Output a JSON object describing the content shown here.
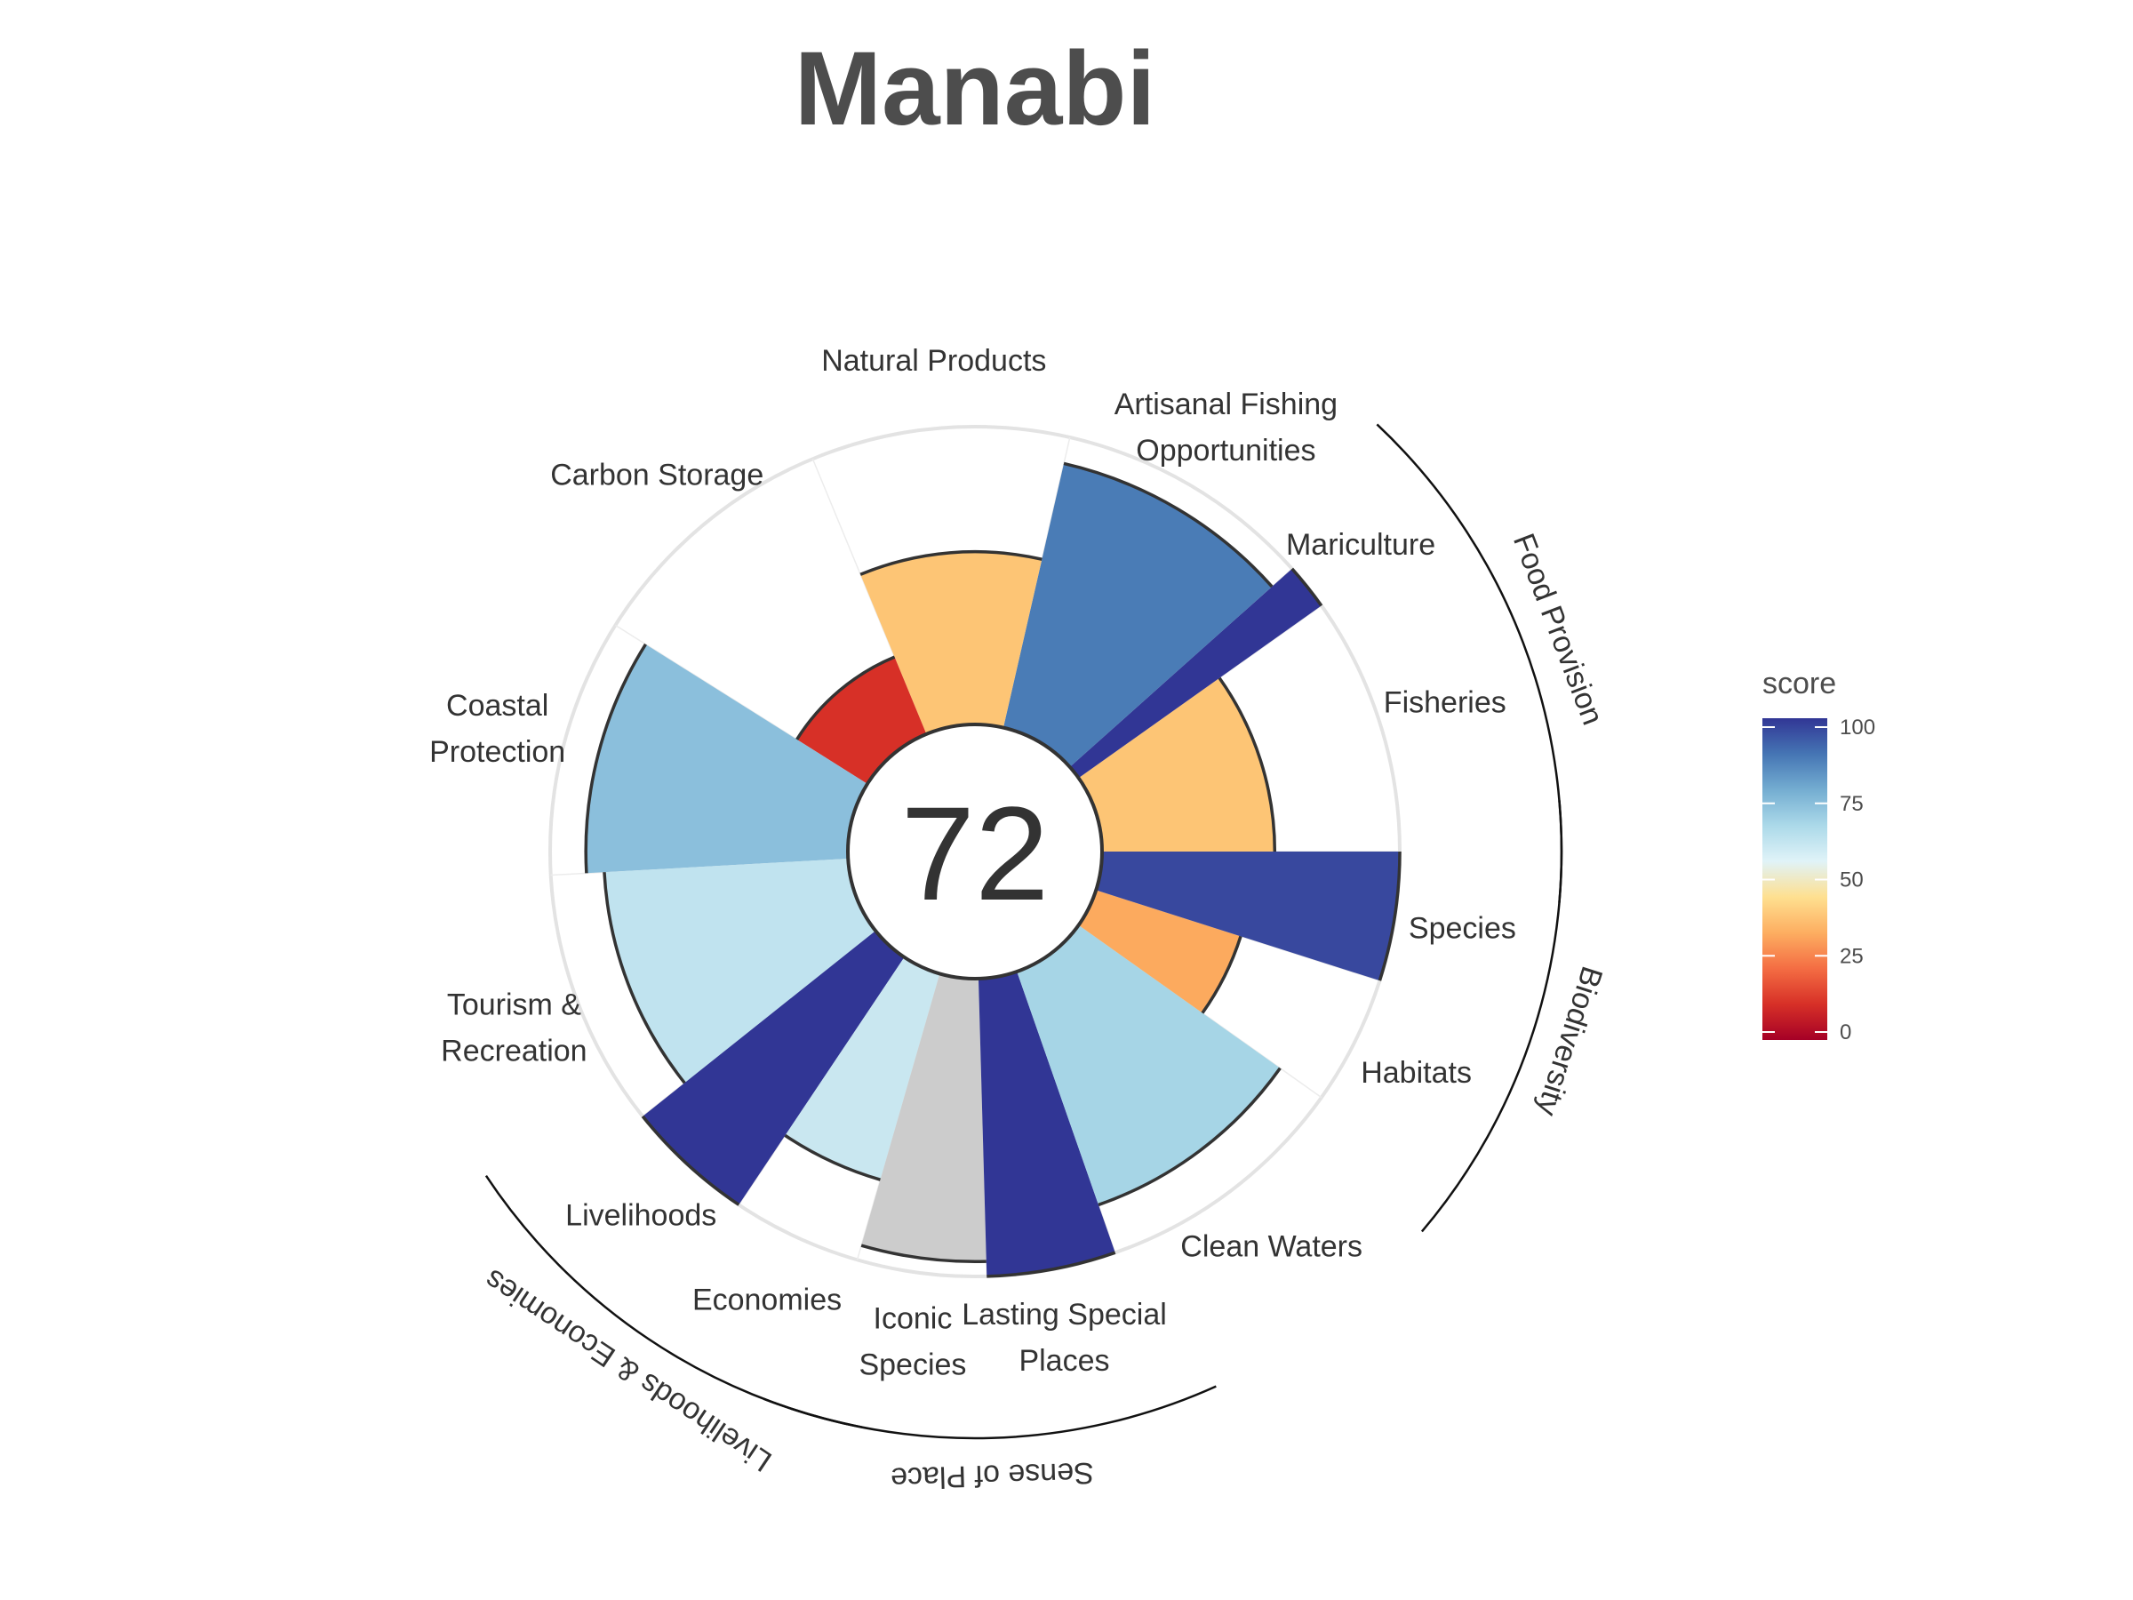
{
  "chart_data": {
    "type": "polar-bar",
    "title": "Manabi",
    "overall_score": "72",
    "rlim": [
      0,
      100
    ],
    "goals": [
      {
        "label": "Fisheries",
        "lines": [
          "Fisheries"
        ],
        "value": 58,
        "weight": 1.0,
        "color": "#FDC575",
        "group": "food"
      },
      {
        "label": "Mariculture",
        "lines": [
          "Mariculture"
        ],
        "value": 100,
        "weight": 0.18,
        "color": "#313695",
        "group": "food"
      },
      {
        "label": "Artisanal Fishing Opportunities",
        "lines": [
          "Artisanal Fishing",
          "Opportunities"
        ],
        "value": 91,
        "weight": 1.0,
        "color": "#4A7CB6",
        "group": ""
      },
      {
        "label": "Natural Products",
        "lines": [
          "Natural Products"
        ],
        "value": 58,
        "weight": 1.0,
        "color": "#FDC575",
        "group": ""
      },
      {
        "label": "Carbon Storage",
        "lines": [
          "Carbon Storage"
        ],
        "value": 28,
        "weight": 1.0,
        "color": "#D73027",
        "group": ""
      },
      {
        "label": "Coastal Protection",
        "lines": [
          "Coastal",
          "Protection"
        ],
        "value": 88,
        "weight": 1.0,
        "color": "#8BBFDC",
        "group": ""
      },
      {
        "label": "Tourism & Recreation",
        "lines": [
          "Tourism &",
          "Recreation"
        ],
        "value": 82,
        "weight": 1.0,
        "color": "#C0E3EF",
        "group": ""
      },
      {
        "label": "Livelihoods",
        "lines": [
          "Livelihoods"
        ],
        "value": 100,
        "weight": 0.5,
        "color": "#313695",
        "group": "liv"
      },
      {
        "label": "Economies",
        "lines": [
          "Economies"
        ],
        "value": 72,
        "weight": 0.5,
        "color": "#C9E7F0",
        "group": "liv"
      },
      {
        "label": "Iconic Species",
        "lines": [
          "Iconic",
          "Species"
        ],
        "value": 95,
        "weight": 0.5,
        "color": "#CCCCCC",
        "group": "sense"
      },
      {
        "label": "Lasting Special Places",
        "lines": [
          "Lasting Special",
          "Places"
        ],
        "value": 100,
        "weight": 0.5,
        "color": "#313695",
        "group": "sense"
      },
      {
        "label": "Clean Waters",
        "lines": [
          "Clean Waters"
        ],
        "value": 83,
        "weight": 1.0,
        "color": "#A6D5E6",
        "group": ""
      },
      {
        "label": "Habitats",
        "lines": [
          "Habitats"
        ],
        "value": 51,
        "weight": 0.5,
        "color": "#FCAA5E",
        "group": "bio"
      },
      {
        "label": "Species",
        "lines": [
          "Species"
        ],
        "value": 100,
        "weight": 0.5,
        "color": "#38489E",
        "group": "bio"
      }
    ],
    "groups": [
      {
        "id": "food",
        "label": "Food Provision"
      },
      {
        "id": "bio",
        "label": "Biodiversity"
      },
      {
        "id": "sense",
        "label": "Sense of Place"
      },
      {
        "id": "liv",
        "label": "Livelihoods & Economies"
      }
    ],
    "legend": {
      "title": "score",
      "ticks": [
        0,
        25,
        50,
        75,
        100
      ],
      "colors": [
        "#A50026",
        "#D73027",
        "#F46D43",
        "#FDAE61",
        "#FEE090",
        "#E0F3F8",
        "#ABD9E9",
        "#74ADD1",
        "#4575B4",
        "#313695"
      ]
    }
  }
}
